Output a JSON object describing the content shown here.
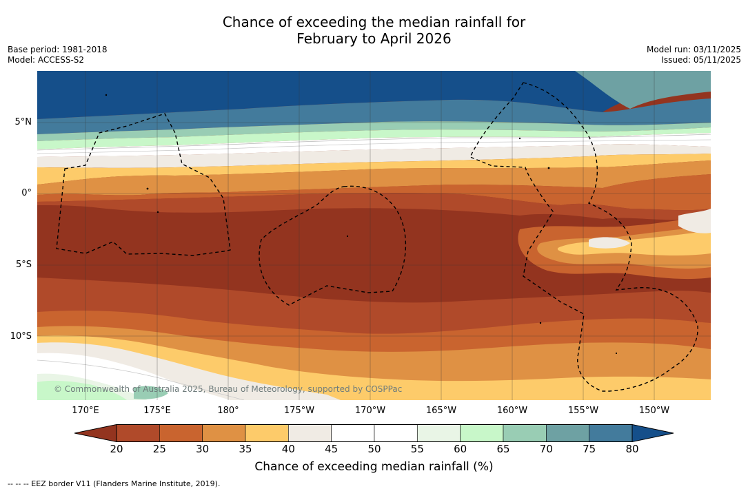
{
  "title_line1": "Chance of exceeding the median rainfall for",
  "title_line2": "February to April 2026",
  "meta": {
    "base_period": "Base period: 1981-2018",
    "model": "Model: ACCESS-S2",
    "model_run": "Model run: 03/11/2025",
    "issued": "Issued: 05/11/2025"
  },
  "axes": {
    "lat_labels": [
      "5°N",
      "0°",
      "5°S",
      "10°S"
    ],
    "lon_labels": [
      "170°E",
      "175°E",
      "180°",
      "175°W",
      "170°W",
      "165°W",
      "160°W",
      "155°W",
      "150°W"
    ]
  },
  "copyright": "© Commonwealth of Australia 2025, Bureau of Meteorology, supported by COSPPac",
  "colorbar": {
    "ticks": [
      "20",
      "25",
      "30",
      "35",
      "40",
      "45",
      "50",
      "55",
      "60",
      "65",
      "70",
      "75",
      "80"
    ],
    "colors": [
      "#93341f",
      "#b04a2a",
      "#c9642f",
      "#df9144",
      "#fdcb6a",
      "#f0ebe4",
      "#ffffff",
      "#ffffff",
      "#e9f5e6",
      "#c8f7c9",
      "#99cdb4",
      "#6ea1a3",
      "#437b9c",
      "#154f8a"
    ],
    "label": "Chance of exceeding median rainfall (%)"
  },
  "legend": "--  --  -- EEZ border V11 (Flanders Marine Institute, 2019)."
}
